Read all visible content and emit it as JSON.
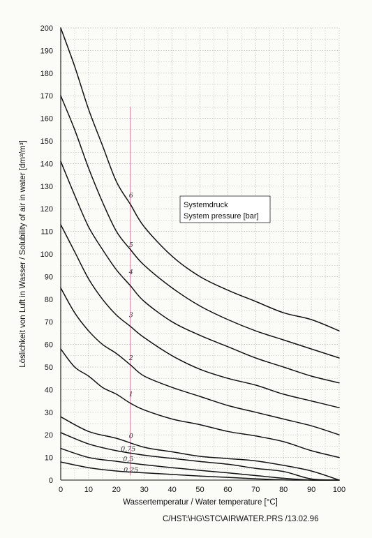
{
  "chart_data": {
    "type": "line",
    "xlabel": "Wassertemperatur / Water temperature [°C]",
    "ylabel": "Löslichkeit von Luft in Wasser / Solubility of air in water [dm³/m³]",
    "xlim": [
      0,
      100
    ],
    "ylim": [
      0,
      200
    ],
    "x_ticks": [
      "0",
      "10",
      "20",
      "30",
      "40",
      "50",
      "60",
      "70",
      "80",
      "90",
      "100"
    ],
    "y_ticks": [
      "0",
      "10",
      "20",
      "30",
      "40",
      "50",
      "60",
      "70",
      "80",
      "90",
      "100",
      "110",
      "120",
      "130",
      "140",
      "150",
      "160",
      "170",
      "180",
      "190",
      "200"
    ],
    "grid": true,
    "legend": {
      "title": "Systemdruck",
      "subtitle": "System pressure [bar]",
      "placement": "top-right"
    },
    "series": [
      {
        "name": "0.25",
        "label_text": "0,25",
        "label_x": 25,
        "label_y": 4.5,
        "x": [
          0,
          10,
          20,
          30,
          40,
          50,
          60,
          70,
          80,
          90,
          100
        ],
        "y": [
          8,
          5.5,
          4,
          3.2,
          2.5,
          1.8,
          1.2,
          0.6,
          0.1,
          0,
          0
        ]
      },
      {
        "name": "0.5",
        "label_text": "0,5",
        "label_x": 24,
        "label_y": 9.3,
        "x": [
          0,
          10,
          20,
          30,
          40,
          50,
          60,
          70,
          80,
          90,
          100
        ],
        "y": [
          14,
          10,
          8.3,
          6.8,
          5.5,
          4.3,
          3.2,
          2,
          0.8,
          0,
          0
        ]
      },
      {
        "name": "0.75",
        "label_text": "0,75",
        "label_x": 24,
        "label_y": 13.8,
        "x": [
          0,
          10,
          20,
          30,
          40,
          50,
          60,
          70,
          80,
          90,
          100
        ],
        "y": [
          21,
          16,
          13,
          11,
          9.6,
          8.2,
          7,
          5.2,
          3.8,
          0.5,
          0
        ]
      },
      {
        "name": "0",
        "label_text": "0",
        "label_x": 25,
        "label_y": 19.4,
        "x": [
          0,
          10,
          20,
          30,
          40,
          50,
          60,
          70,
          80,
          90,
          100
        ],
        "y": [
          28,
          21.5,
          18.5,
          14.5,
          12.5,
          10.5,
          9.5,
          8.5,
          6.5,
          4,
          0
        ]
      },
      {
        "name": "1",
        "label_text": "1",
        "label_x": 25,
        "label_y": 38,
        "x": [
          0,
          5,
          10,
          15,
          20,
          25,
          30,
          40,
          50,
          60,
          70,
          80,
          90,
          100
        ],
        "y": [
          58,
          50,
          46,
          41,
          38,
          34,
          31,
          27,
          24.5,
          21.5,
          19.5,
          17,
          13,
          10
        ]
      },
      {
        "name": "2",
        "label_text": "2",
        "label_x": 25,
        "label_y": 54,
        "x": [
          0,
          5,
          10,
          15,
          20,
          25,
          30,
          40,
          50,
          60,
          70,
          80,
          90,
          100
        ],
        "y": [
          85,
          74,
          66,
          60,
          56,
          51,
          46,
          41,
          37,
          33,
          30,
          27,
          24,
          20
        ]
      },
      {
        "name": "3",
        "label_text": "3",
        "label_x": 25,
        "label_y": 73,
        "x": [
          0,
          5,
          10,
          15,
          20,
          25,
          30,
          40,
          50,
          60,
          70,
          80,
          90,
          100
        ],
        "y": [
          113,
          101,
          89,
          80,
          73,
          68,
          63,
          55,
          49,
          45,
          42,
          38,
          35,
          32
        ]
      },
      {
        "name": "4",
        "label_text": "4",
        "label_x": 25,
        "label_y": 92,
        "x": [
          0,
          5,
          10,
          15,
          20,
          25,
          30,
          40,
          50,
          60,
          70,
          80,
          90,
          100
        ],
        "y": [
          141,
          126,
          112,
          102,
          93,
          86,
          79,
          70,
          64,
          59,
          54,
          50,
          46,
          43
        ]
      },
      {
        "name": "5",
        "label_text": "5",
        "label_x": 25,
        "label_y": 104,
        "x": [
          0,
          5,
          10,
          15,
          20,
          25,
          30,
          40,
          50,
          60,
          70,
          80,
          90,
          100
        ],
        "y": [
          170,
          155,
          138,
          123,
          110,
          102,
          95,
          85,
          77,
          71,
          66,
          62,
          58,
          54
        ]
      },
      {
        "name": "6",
        "label_text": "6",
        "label_x": 25,
        "label_y": 126,
        "x": [
          0,
          5,
          10,
          15,
          20,
          25,
          30,
          40,
          50,
          60,
          70,
          80,
          90,
          100
        ],
        "y": [
          200,
          183,
          164,
          148,
          132,
          122,
          112,
          99,
          90,
          84,
          79,
          74,
          71,
          66
        ]
      }
    ]
  },
  "footer": {
    "text": "C/HST:\\HG\\STC\\AIRWATER.PRS /13.02.96"
  },
  "colors": {
    "curve": "#111111",
    "grid": "#b8b8b8",
    "marker_line": "#c43a78"
  }
}
